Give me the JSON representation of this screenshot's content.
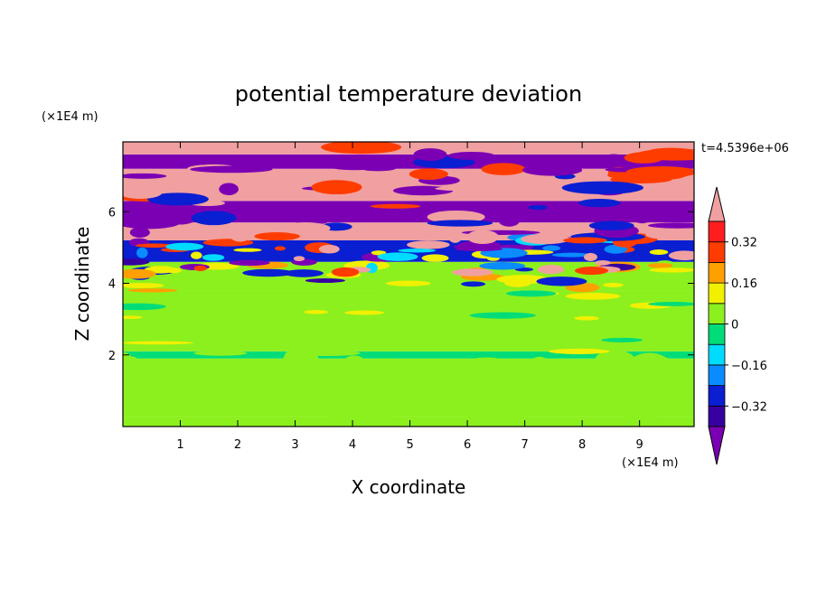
{
  "chart_data": {
    "type": "heatmap",
    "title": "potential temperature deviation",
    "xlabel": "X coordinate",
    "ylabel": "Z coordinate",
    "x_scale_label": "(×1E4 m)",
    "y_scale_label": "(×1E4 m)",
    "time_label": "t=4.5396e+06",
    "xlim": [
      0,
      9.95
    ],
    "ylim": [
      0,
      7.95
    ],
    "x_ticks": [
      1,
      2,
      3,
      4,
      5,
      6,
      7,
      8,
      9
    ],
    "y_ticks": [
      2,
      4,
      6
    ],
    "colorbar": {
      "ticks": [
        "0.32",
        "0.16",
        "0",
        "−0.16",
        "−0.32"
      ],
      "tick_values": [
        0.32,
        0.16,
        0,
        -0.16,
        -0.32
      ],
      "levels": [
        -0.4,
        -0.32,
        -0.24,
        -0.16,
        -0.08,
        0,
        0.08,
        0.16,
        0.24,
        0.32,
        0.4
      ],
      "colors": [
        "#7b00b4",
        "#3700a0",
        "#0a1ed2",
        "#0a8cff",
        "#00dcff",
        "#00dc78",
        "#8cf01e",
        "#f0f000",
        "#ffa000",
        "#ff3c00",
        "#ff1e1e",
        "#f0a0a0"
      ],
      "extend": "both"
    },
    "bands": [
      {
        "z": [
          0.0,
          0.3
        ],
        "dominant": 0.02
      },
      {
        "z": [
          0.3,
          1.9
        ],
        "dominant": 0.04
      },
      {
        "z": [
          1.9,
          2.1
        ],
        "dominant": -0.02
      },
      {
        "z": [
          2.1,
          3.8
        ],
        "dominant": 0.04
      },
      {
        "z": [
          3.8,
          4.6
        ],
        "dominant": 0.0
      },
      {
        "z": [
          4.6,
          5.2
        ],
        "dominant": -0.3
      },
      {
        "z": [
          5.2,
          5.7
        ],
        "dominant": 0.45
      },
      {
        "z": [
          5.7,
          6.3
        ],
        "dominant": -0.45
      },
      {
        "z": [
          6.3,
          7.2
        ],
        "dominant": 0.45
      },
      {
        "z": [
          7.2,
          7.6
        ],
        "dominant": -0.45
      },
      {
        "z": [
          7.6,
          7.95
        ],
        "dominant": 0.45
      }
    ]
  }
}
